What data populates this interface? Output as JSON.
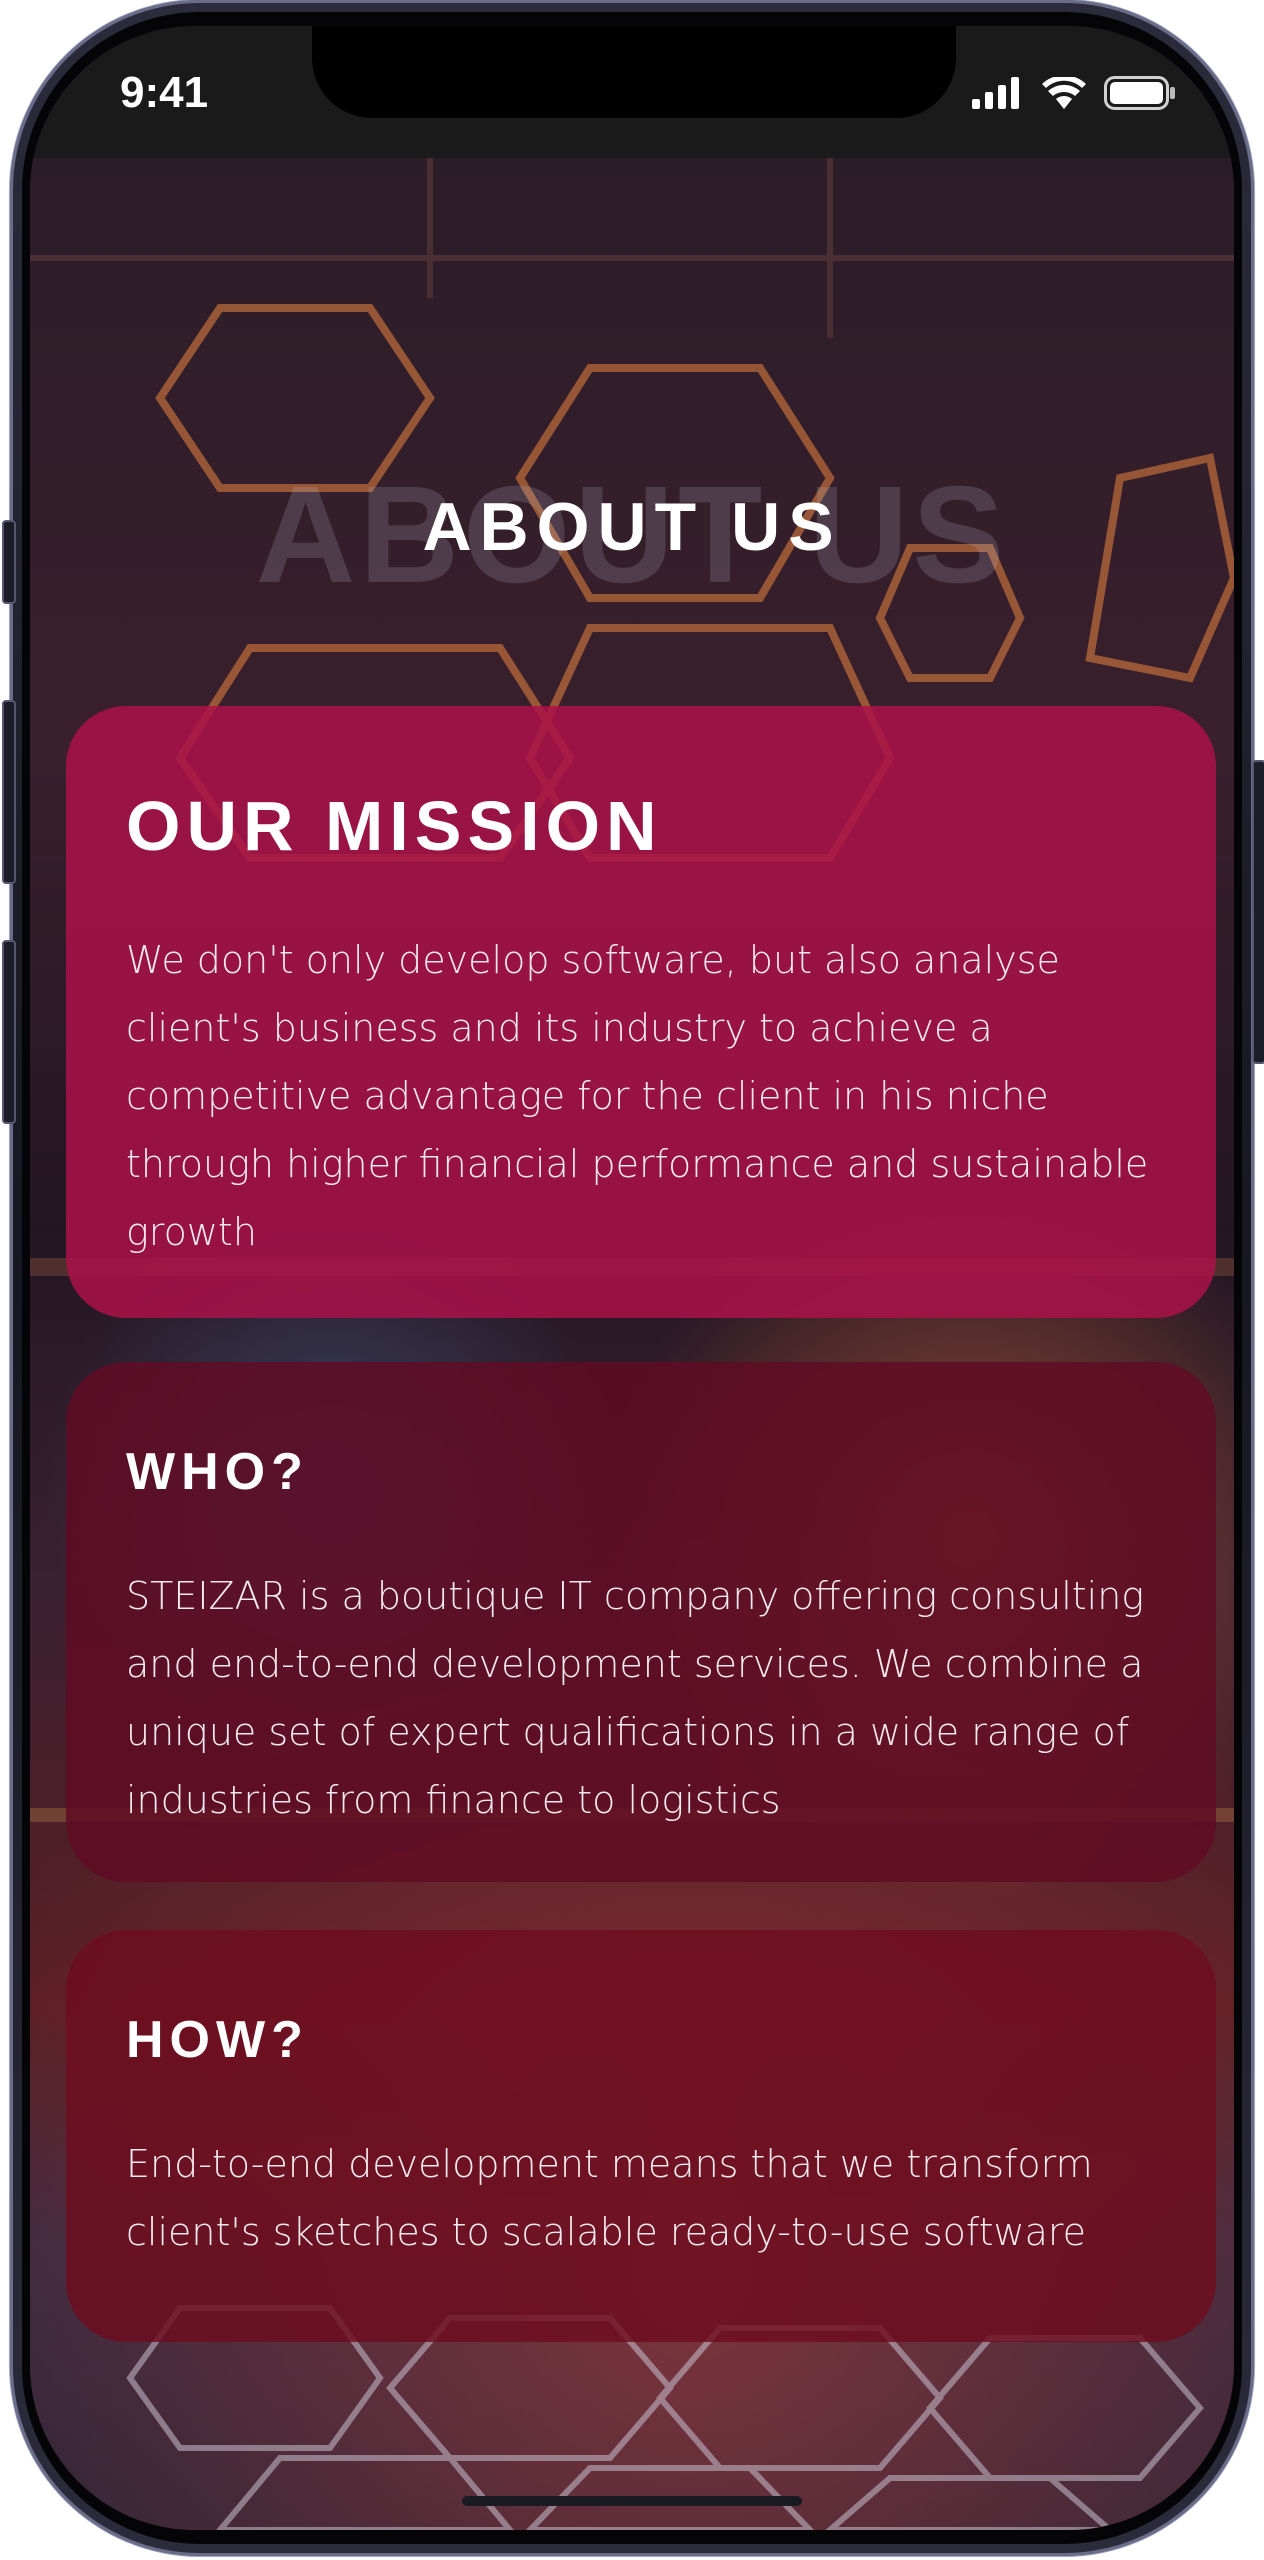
{
  "status_bar": {
    "time": "9:41",
    "icons": [
      "cellular-signal-icon",
      "wifi-icon",
      "battery-icon"
    ]
  },
  "page": {
    "ghost_title": "ABOUT US",
    "title": "ABOUT US"
  },
  "sections": [
    {
      "heading": "OUR MISSION",
      "body": "We don't only develop software, but also analyse client's business and its industry to achieve a competitive advantage for the client in his niche through higher financial performance and sustainable growth"
    },
    {
      "heading": "WHO?",
      "body": "STEIZAR is a boutique IT company offering consulting and end-to-end development services. We combine a unique set of expert qualifications in a wide range of industries from finance to logistics"
    },
    {
      "heading": "HOW?",
      "body": "End-to-end development means that we transform client's sketches to scalable ready-to-use software"
    }
  ],
  "colors": {
    "mission_card": "#aa1248",
    "who_card": "#5f0c24",
    "how_card": "#6e0c1e",
    "text": "#ffffff"
  }
}
